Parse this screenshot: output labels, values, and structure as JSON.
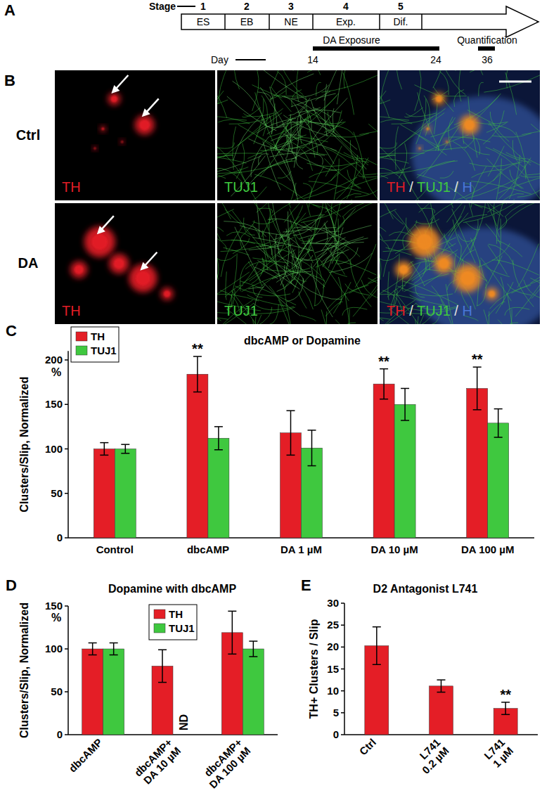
{
  "panels": {
    "A": {
      "label": "A",
      "stage_label": "Stage",
      "stages": [
        {
          "number": 1,
          "name": "ES"
        },
        {
          "number": 2,
          "name": "EB"
        },
        {
          "number": 3,
          "name": "NE"
        },
        {
          "number": 4,
          "name": "Exp."
        },
        {
          "number": 5,
          "name": "Dif."
        }
      ],
      "exposure_label": "DA Exposure",
      "quantification_label": "Quantification",
      "day_label": "Day",
      "days": [
        14,
        24,
        36
      ]
    },
    "B": {
      "label": "B",
      "rows": [
        "Ctrl",
        "DA"
      ],
      "channels": [
        {
          "text": "TH",
          "color": "#e41e26"
        },
        {
          "text": "TUJ1",
          "color": "#3fc83f"
        },
        {
          "text": "H",
          "color": "#4a78d8"
        }
      ],
      "merge_separator": " / "
    }
  },
  "chart_data": [
    {
      "type": "bar",
      "panel_label": "C",
      "title": "dbcAMP or Dopamine",
      "y_label": "Clusters/Slip, Normalized",
      "y_unit_label": "%",
      "categories": [
        "Control",
        "dbcAMP",
        "DA 1 µM",
        "DA 10 µM",
        "DA 100 µM"
      ],
      "series": [
        {
          "name": "TH",
          "color": "#e41e26",
          "values": [
            100,
            184,
            118,
            173,
            168
          ],
          "errors": [
            7,
            20,
            25,
            17,
            24
          ]
        },
        {
          "name": "TUJ1",
          "color": "#3fc83f",
          "values": [
            100,
            112,
            101,
            150,
            129
          ],
          "errors": [
            5,
            13,
            20,
            18,
            16
          ]
        }
      ],
      "ylim": [
        0,
        210
      ],
      "yticks": [
        0,
        50,
        100,
        150,
        200
      ],
      "legend": "top-left",
      "annotations": [
        {
          "category": "dbcAMP",
          "series": "TH",
          "text": "**"
        },
        {
          "category": "DA 10 µM",
          "series": "TH",
          "text": "**"
        },
        {
          "category": "DA 100 µM",
          "series": "TH",
          "text": "**"
        }
      ]
    },
    {
      "type": "bar",
      "panel_label": "D",
      "title": "Dopamine with dbcAMP",
      "y_label": "Clusters/Slip, Normalized",
      "y_unit_label": "%",
      "categories": [
        "dbcAMP",
        "dbcAMP+\nDA 10 µM",
        "dbcAMP+\nDA 100 µM"
      ],
      "series": [
        {
          "name": "TH",
          "color": "#e41e26",
          "values": [
            100,
            80,
            119
          ],
          "errors": [
            7,
            19,
            25
          ]
        },
        {
          "name": "TUJ1",
          "color": "#3fc83f",
          "values": [
            100,
            null,
            100
          ],
          "errors": [
            7,
            null,
            9
          ]
        }
      ],
      "ylim": [
        0,
        150
      ],
      "yticks": [
        0,
        50,
        100,
        150
      ],
      "legend": "top",
      "annotations": [
        {
          "category": "dbcAMP+\nDA 10 µM",
          "series": "TUJ1",
          "text": "ND"
        }
      ]
    },
    {
      "type": "bar",
      "panel_label": "E",
      "title": "D2 Antagonist L741",
      "y_label": "TH+ Clusters / Slip",
      "categories": [
        "Ctrl",
        "L741\n0.2 µM",
        "L741\n1 µM"
      ],
      "values": [
        20.3,
        11.1,
        6
      ],
      "errors": [
        4.3,
        1.4,
        1.4
      ],
      "color": "#e41e26",
      "ylim": [
        0,
        30
      ],
      "yticks": [
        0,
        5,
        10,
        15,
        20,
        25,
        30
      ],
      "annotations": [
        {
          "category": "L741\n1 µM",
          "text": "**"
        }
      ]
    }
  ]
}
